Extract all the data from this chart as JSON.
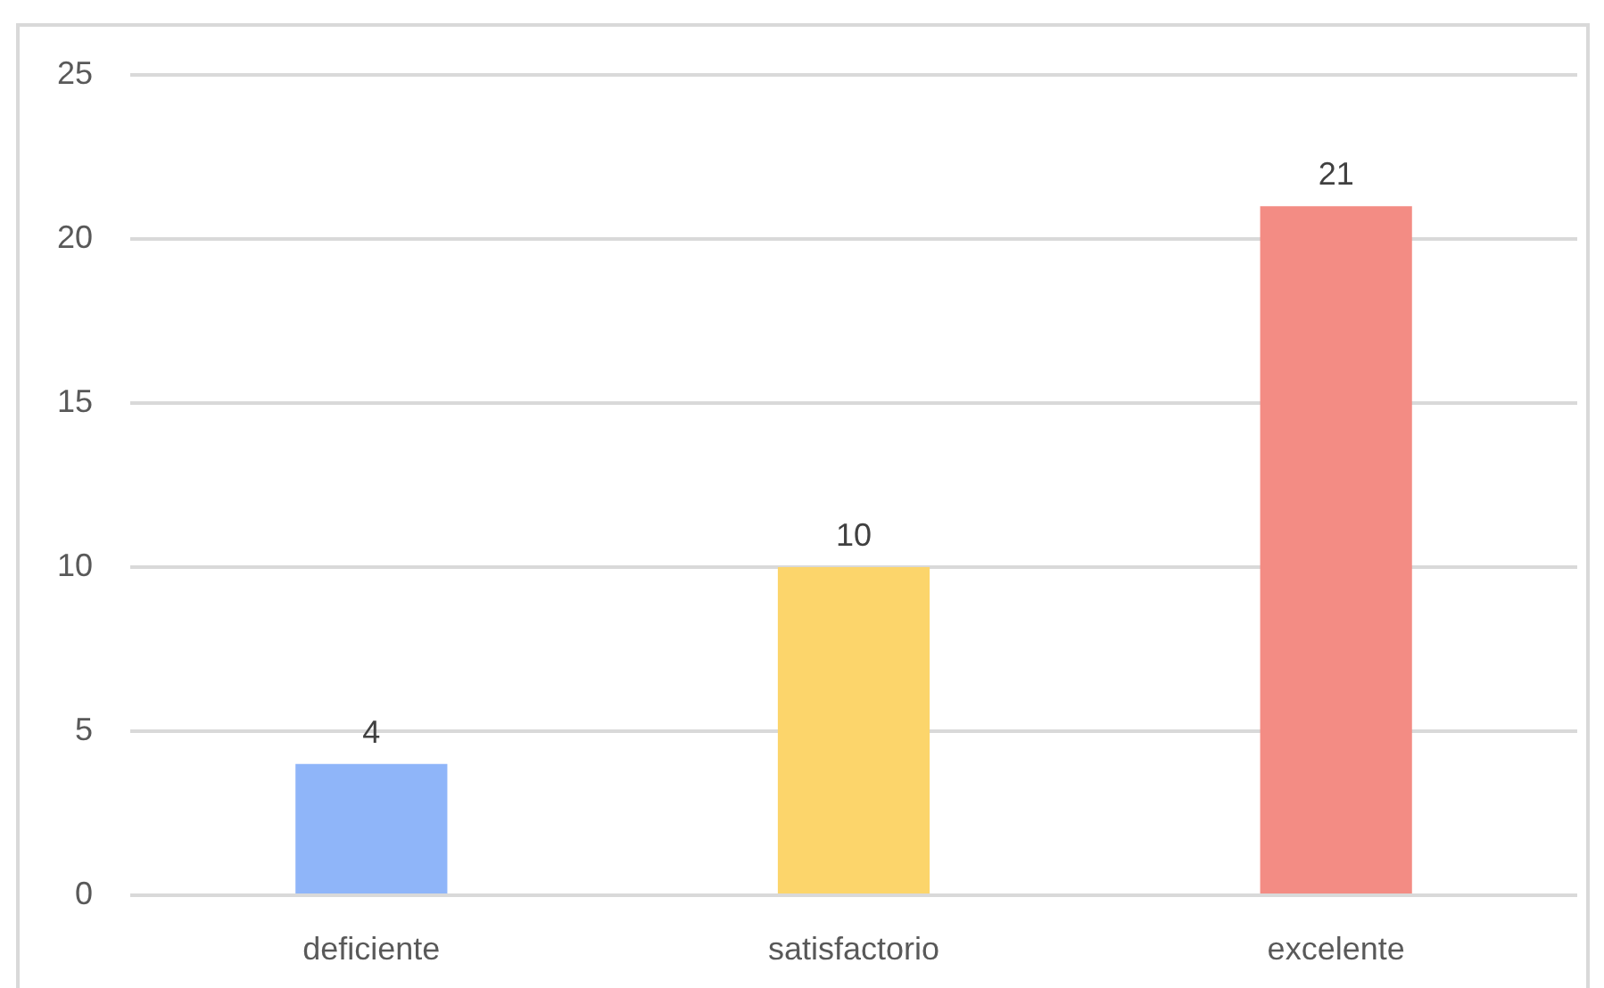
{
  "chart_data": {
    "type": "bar",
    "categories": [
      "deficiente",
      "satisfactorio",
      "excelente"
    ],
    "values": [
      4,
      10,
      21
    ],
    "colors": [
      "#8fb5f9",
      "#fcd56b",
      "#f38c84"
    ],
    "ylim": [
      0,
      25
    ],
    "yticks": [
      0,
      5,
      10,
      15,
      20,
      25
    ],
    "grid": "y",
    "data_labels": true
  }
}
